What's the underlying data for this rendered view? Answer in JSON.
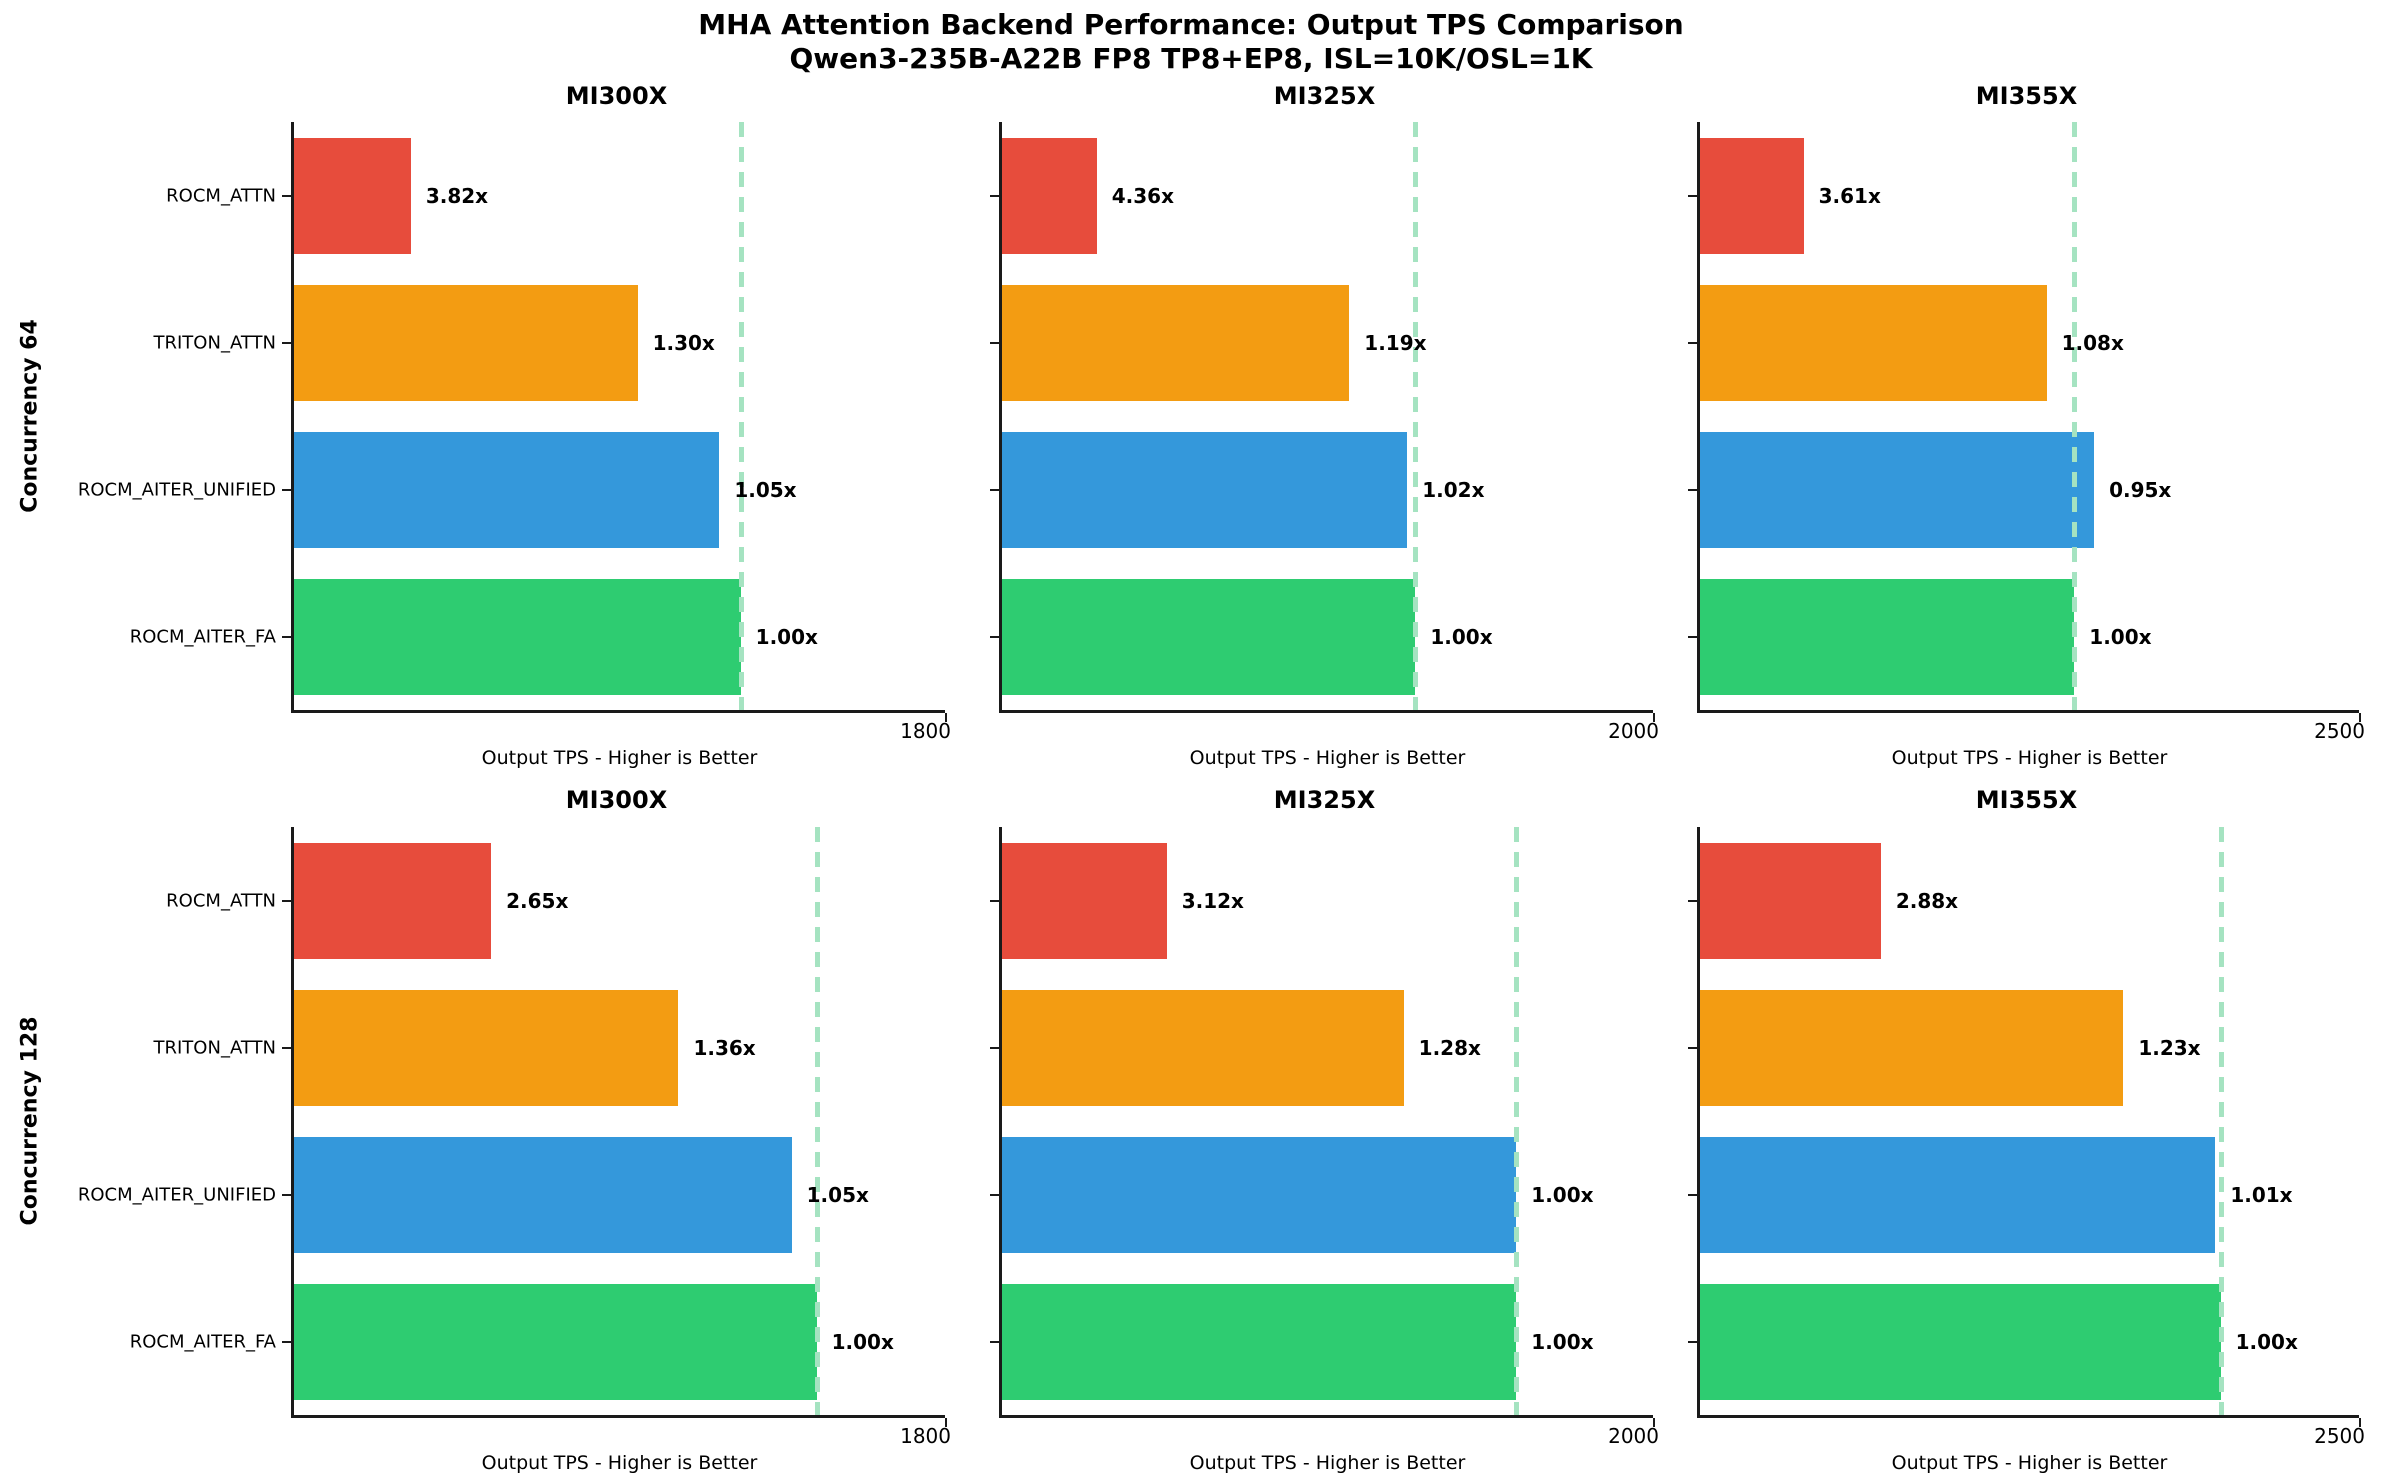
{
  "title": {
    "line1": "MHA Attention Backend Performance: Output TPS Comparison",
    "line2": "Qwen3-235B-A22B FP8 TP8+EP8, ISL=10K/OSL=1K"
  },
  "rows": [
    {
      "label": "Concurrency 64"
    },
    {
      "label": "Concurrency 128"
    }
  ],
  "style": {
    "bar_colors": [
      "#e74c3c",
      "#f39c12",
      "#3498db",
      "#2ecc71"
    ],
    "baseline_line_color": "#a5e3c1",
    "spine_color": "#1a1a1a",
    "text_color": "#000000"
  },
  "chart_data": [
    {
      "type": "bar",
      "orientation": "horizontal",
      "row_label": "Concurrency 64",
      "title": "MI300X",
      "xlabel": "Output TPS - Higher is Better",
      "xlim": [
        0,
        1800
      ],
      "xticks": [
        "1800"
      ],
      "grid": false,
      "categories": [
        "ROCM_ATTN",
        "TRITON_ATTN",
        "ROCM_AITER_UNIFIED",
        "ROCM_AITER_FA"
      ],
      "values_tps_est": [
        323,
        950,
        1176,
        1235
      ],
      "bar_labels": [
        "3.82x",
        "1.30x",
        "1.05x",
        "1.00x"
      ],
      "baseline_tps_est": 1235,
      "baseline_backend": "ROCM_AITER_FA"
    },
    {
      "type": "bar",
      "orientation": "horizontal",
      "row_label": "Concurrency 64",
      "title": "MI325X",
      "xlabel": "Output TPS - Higher is Better",
      "xlim": [
        0,
        2000
      ],
      "xticks": [
        "2000"
      ],
      "grid": false,
      "categories": [
        "ROCM_ATTN",
        "TRITON_ATTN",
        "ROCM_AITER_UNIFIED",
        "ROCM_AITER_FA"
      ],
      "values_tps_est": [
        291,
        1067,
        1245,
        1270
      ],
      "bar_labels": [
        "4.36x",
        "1.19x",
        "1.02x",
        "1.00x"
      ],
      "baseline_tps_est": 1270,
      "baseline_backend": "ROCM_AITER_FA"
    },
    {
      "type": "bar",
      "orientation": "horizontal",
      "row_label": "Concurrency 64",
      "title": "MI355X",
      "xlabel": "Output TPS - Higher is Better",
      "xlim": [
        0,
        2500
      ],
      "xticks": [
        "2500"
      ],
      "grid": false,
      "categories": [
        "ROCM_ATTN",
        "TRITON_ATTN",
        "ROCM_AITER_UNIFIED",
        "ROCM_AITER_FA"
      ],
      "values_tps_est": [
        393,
        1315,
        1495,
        1420
      ],
      "bar_labels": [
        "3.61x",
        "1.08x",
        "0.95x",
        "1.00x"
      ],
      "baseline_tps_est": 1420,
      "baseline_backend": "ROCM_AITER_FA"
    },
    {
      "type": "bar",
      "orientation": "horizontal",
      "row_label": "Concurrency 128",
      "title": "MI300X",
      "xlabel": "Output TPS - Higher is Better",
      "xlim": [
        0,
        1800
      ],
      "xticks": [
        "1800"
      ],
      "grid": false,
      "categories": [
        "ROCM_ATTN",
        "TRITON_ATTN",
        "ROCM_AITER_UNIFIED",
        "ROCM_AITER_FA"
      ],
      "values_tps_est": [
        545,
        1063,
        1376,
        1445
      ],
      "bar_labels": [
        "2.65x",
        "1.36x",
        "1.05x",
        "1.00x"
      ],
      "baseline_tps_est": 1445,
      "baseline_backend": "ROCM_AITER_FA"
    },
    {
      "type": "bar",
      "orientation": "horizontal",
      "row_label": "Concurrency 128",
      "title": "MI325X",
      "xlabel": "Output TPS - Higher is Better",
      "xlim": [
        0,
        2000
      ],
      "xticks": [
        "2000"
      ],
      "grid": false,
      "categories": [
        "ROCM_ATTN",
        "TRITON_ATTN",
        "ROCM_AITER_UNIFIED",
        "ROCM_AITER_FA"
      ],
      "values_tps_est": [
        506,
        1234,
        1580,
        1580
      ],
      "bar_labels": [
        "3.12x",
        "1.28x",
        "1.00x",
        "1.00x"
      ],
      "baseline_tps_est": 1580,
      "baseline_backend": "ROCM_AITER_FA"
    },
    {
      "type": "bar",
      "orientation": "horizontal",
      "row_label": "Concurrency 128",
      "title": "MI355X",
      "xlabel": "Output TPS - Higher is Better",
      "xlim": [
        0,
        2500
      ],
      "xticks": [
        "2500"
      ],
      "grid": false,
      "categories": [
        "ROCM_ATTN",
        "TRITON_ATTN",
        "ROCM_AITER_UNIFIED",
        "ROCM_AITER_FA"
      ],
      "values_tps_est": [
        686,
        1606,
        1955,
        1975
      ],
      "bar_labels": [
        "2.88x",
        "1.23x",
        "1.01x",
        "1.00x"
      ],
      "baseline_tps_est": 1975,
      "baseline_backend": "ROCM_AITER_FA"
    }
  ]
}
